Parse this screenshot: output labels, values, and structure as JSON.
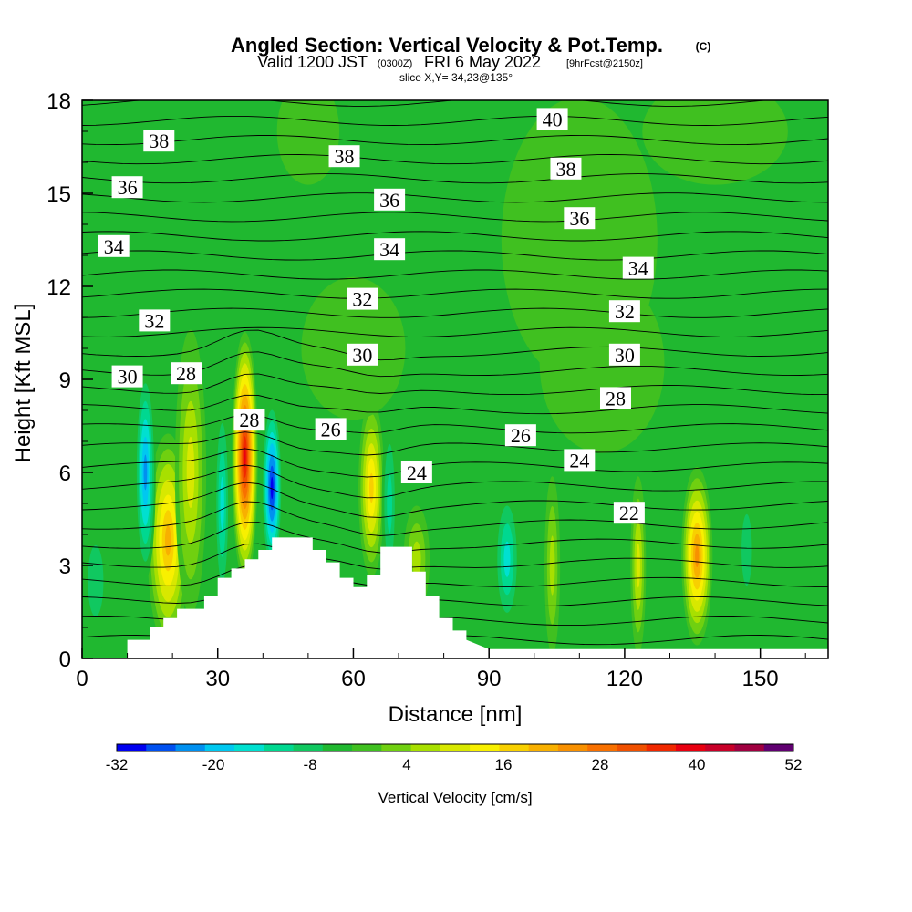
{
  "chart_data": {
    "type": "heatmap",
    "title": "Angled Section: Vertical Velocity & Pot.Temp.",
    "title_suffix": "(C)",
    "subtitle_valid": "Valid 1200 JST",
    "subtitle_utc": "(0300Z)",
    "subtitle_date": "FRI 6 May 2022",
    "subtitle_fcst": "[9hrFcst@2150z]",
    "subtitle_slice": "slice X,Y= 34,23@135°",
    "xlabel": "Distance [nm]",
    "ylabel": "Height [Kft MSL]",
    "xlim": [
      0,
      165
    ],
    "ylim": [
      0,
      18
    ],
    "x_ticks": [
      "0",
      "30",
      "60",
      "90",
      "120",
      "150"
    ],
    "x_tick_values": [
      0,
      30,
      60,
      90,
      120,
      150
    ],
    "y_ticks": [
      "0",
      "3",
      "6",
      "9",
      "12",
      "15",
      "18"
    ],
    "y_tick_values": [
      0,
      3,
      6,
      9,
      12,
      15,
      18
    ],
    "colorbar": {
      "label": "Vertical Velocity [cm/s]",
      "tick_labels": [
        "-32",
        "-20",
        "-8",
        "4",
        "16",
        "28",
        "40",
        "52"
      ],
      "tick_values": [
        -32,
        -20,
        -8,
        4,
        16,
        28,
        40,
        52
      ],
      "step": 4,
      "colors": [
        "#0000f0",
        "#0050f0",
        "#0090f0",
        "#00c8f0",
        "#00e0d0",
        "#00d890",
        "#10c860",
        "#20b830",
        "#40c020",
        "#70d010",
        "#a8e000",
        "#d8e800",
        "#f8f000",
        "#f8d000",
        "#f8b000",
        "#f89000",
        "#f87000",
        "#f05000",
        "#f02800",
        "#e80010",
        "#c80028",
        "#a00040",
        "#600070"
      ]
    },
    "theta_contour_labels": [
      {
        "text": "38",
        "x": 17,
        "y": 16.7
      },
      {
        "text": "38",
        "x": 58,
        "y": 16.2
      },
      {
        "text": "40",
        "x": 104,
        "y": 17.4
      },
      {
        "text": "38",
        "x": 107,
        "y": 15.8
      },
      {
        "text": "36",
        "x": 10,
        "y": 15.2
      },
      {
        "text": "36",
        "x": 68,
        "y": 14.8
      },
      {
        "text": "36",
        "x": 110,
        "y": 14.2
      },
      {
        "text": "34",
        "x": 7,
        "y": 13.3
      },
      {
        "text": "34",
        "x": 68,
        "y": 13.2
      },
      {
        "text": "34",
        "x": 123,
        "y": 12.6
      },
      {
        "text": "32",
        "x": 16,
        "y": 10.9
      },
      {
        "text": "32",
        "x": 62,
        "y": 11.6
      },
      {
        "text": "32",
        "x": 120,
        "y": 11.2
      },
      {
        "text": "30",
        "x": 10,
        "y": 9.1
      },
      {
        "text": "30",
        "x": 62,
        "y": 9.8
      },
      {
        "text": "30",
        "x": 120,
        "y": 9.8
      },
      {
        "text": "28",
        "x": 23,
        "y": 9.2
      },
      {
        "text": "28",
        "x": 37,
        "y": 7.7
      },
      {
        "text": "28",
        "x": 118,
        "y": 8.4
      },
      {
        "text": "26",
        "x": 55,
        "y": 7.4
      },
      {
        "text": "26",
        "x": 97,
        "y": 7.2
      },
      {
        "text": "24",
        "x": 74,
        "y": 6.0
      },
      {
        "text": "24",
        "x": 110,
        "y": 6.4
      },
      {
        "text": "22",
        "x": 121,
        "y": 4.7
      }
    ],
    "terrain_profile": {
      "x": [
        0,
        10,
        10,
        15,
        15,
        18,
        18,
        21,
        21,
        27,
        27,
        30,
        30,
        33,
        33,
        36,
        36,
        39,
        39,
        42,
        42,
        51,
        51,
        54,
        54,
        57,
        57,
        60,
        60,
        63,
        63,
        66,
        66,
        73,
        73,
        76,
        76,
        79,
        79,
        82,
        82,
        85,
        85,
        90,
        165
      ],
      "height": [
        0,
        0,
        0.6,
        0.6,
        1.0,
        1.0,
        1.3,
        1.3,
        1.6,
        1.6,
        2.0,
        2.0,
        2.6,
        2.6,
        2.9,
        2.9,
        3.2,
        3.2,
        3.5,
        3.5,
        3.9,
        3.9,
        3.5,
        3.5,
        3.1,
        3.1,
        2.6,
        2.6,
        2.3,
        2.3,
        2.7,
        2.7,
        3.6,
        3.6,
        2.8,
        2.8,
        2.0,
        2.0,
        1.3,
        1.3,
        0.9,
        0.9,
        0.6,
        0.3,
        0.3
      ]
    },
    "velocity_cells": [
      {
        "x": 19,
        "y": 3.8,
        "value": 28,
        "wx": 4,
        "wy": 3
      },
      {
        "x": 24,
        "y": 6.0,
        "value": 16,
        "wx": 3,
        "wy": 4
      },
      {
        "x": 14,
        "y": 6.0,
        "value": -24,
        "wx": 2,
        "wy": 3
      },
      {
        "x": 36,
        "y": 6.5,
        "value": 48,
        "wx": 2.5,
        "wy": 3.5
      },
      {
        "x": 42,
        "y": 5.5,
        "value": -32,
        "wx": 2,
        "wy": 2.5
      },
      {
        "x": 31,
        "y": 5.0,
        "value": -16,
        "wx": 1.5,
        "wy": 3
      },
      {
        "x": 64,
        "y": 5.5,
        "value": 24,
        "wx": 2.5,
        "wy": 2.5
      },
      {
        "x": 68,
        "y": 5.0,
        "value": -12,
        "wx": 1.5,
        "wy": 2.5
      },
      {
        "x": 74,
        "y": 3.2,
        "value": 12,
        "wx": 2.5,
        "wy": 1.5
      },
      {
        "x": 94,
        "y": 3.2,
        "value": -16,
        "wx": 2.5,
        "wy": 2
      },
      {
        "x": 104,
        "y": 3.0,
        "value": 12,
        "wx": 1.5,
        "wy": 2.5
      },
      {
        "x": 123,
        "y": 3.0,
        "value": 16,
        "wx": 1.5,
        "wy": 2.5
      },
      {
        "x": 136,
        "y": 3.3,
        "value": 32,
        "wx": 3,
        "wy": 2.5
      },
      {
        "x": 147,
        "y": 3.5,
        "value": -8,
        "wx": 2,
        "wy": 2
      },
      {
        "x": 3,
        "y": 2.5,
        "value": -8,
        "wx": 3,
        "wy": 2
      },
      {
        "x": 110,
        "y": 13.5,
        "value": 2,
        "wx": 15,
        "wy": 4
      },
      {
        "x": 115,
        "y": 9.5,
        "value": 2,
        "wx": 12,
        "wy": 2.5
      },
      {
        "x": 60,
        "y": 10.0,
        "value": 2,
        "wx": 10,
        "wy": 2
      },
      {
        "x": 140,
        "y": 17.0,
        "value": 2,
        "wx": 14,
        "wy": 1.5
      },
      {
        "x": 50,
        "y": 17.0,
        "value": 2,
        "wx": 6,
        "wy": 1.5
      },
      {
        "x": 40,
        "y": 12.5,
        "value": -4,
        "wx": 3,
        "wy": 2
      }
    ]
  }
}
